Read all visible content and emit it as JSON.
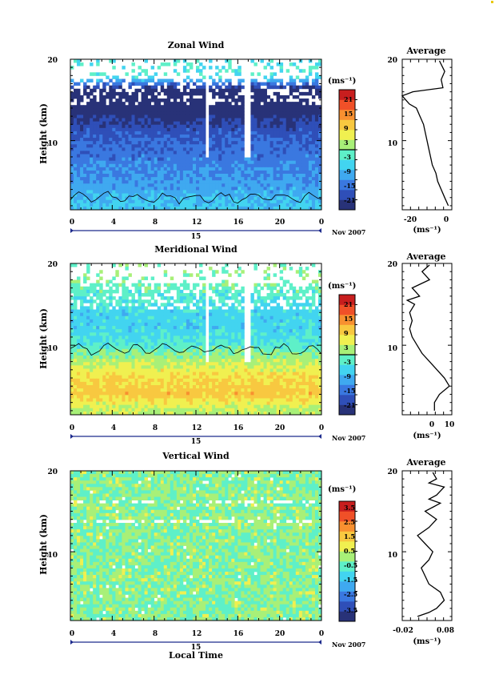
{
  "panels": [
    {
      "id": "zonal",
      "title": "Zonal Wind",
      "ylabel": "Height (km)",
      "y_ticks": [
        "20",
        "10"
      ],
      "x_ticks": [
        "0",
        "4",
        "8",
        "12",
        "16",
        "20",
        "0"
      ],
      "day_label": "15",
      "date_label": "Nov 2007",
      "unit_label": "(ms⁻¹)",
      "colorbar_ticks": [
        "21",
        "15",
        "9",
        "3",
        "-3",
        "-9",
        "-15",
        "-21"
      ],
      "colorbar_contour_value": "0",
      "average": {
        "title": "Average",
        "y_ticks": [
          "20",
          "10"
        ],
        "x_ticks": [
          "-20",
          "0"
        ],
        "xlabel": "(ms⁻¹)"
      }
    },
    {
      "id": "meridional",
      "title": "Meridional Wind",
      "ylabel": "Height (km)",
      "y_ticks": [
        "20",
        "10"
      ],
      "x_ticks": [
        "0",
        "4",
        "8",
        "12",
        "16",
        "20",
        "0"
      ],
      "day_label": "15",
      "date_label": "Nov 2007",
      "unit_label": "(ms⁻¹)",
      "colorbar_ticks": [
        "21",
        "15",
        "9",
        "3",
        "-3",
        "-9",
        "-15",
        "-21"
      ],
      "colorbar_contour_value": "0",
      "average": {
        "title": "Average",
        "y_ticks": [
          "20",
          "10"
        ],
        "x_ticks": [
          "0",
          "10"
        ],
        "xlabel": "(ms⁻¹)"
      }
    },
    {
      "id": "vertical",
      "title": "Vertical Wind",
      "ylabel": "Height (km)",
      "y_ticks": [
        "20",
        "10"
      ],
      "x_ticks": [
        "0",
        "4",
        "8",
        "12",
        "16",
        "20",
        "0"
      ],
      "day_label": "15",
      "date_label": "Nov 2007",
      "unit_label": "(ms⁻¹)",
      "colorbar_ticks": [
        "3.5",
        "2.5",
        "1.5",
        "0.5",
        "-0.5",
        "-1.5",
        "-2.5",
        "-3.5"
      ],
      "average": {
        "title": "Average",
        "y_ticks": [
          "20",
          "10"
        ],
        "x_ticks": [
          "-0.02",
          "0.08"
        ],
        "xlabel": "(ms⁻¹)"
      }
    }
  ],
  "xlabel": "Local Time",
  "colorscale": [
    "#283278",
    "#2f4fb8",
    "#3a78e0",
    "#3fa9f0",
    "#42d4f0",
    "#5ef0c8",
    "#a8f078",
    "#f0f050",
    "#f8c840",
    "#f89030",
    "#f05028",
    "#c81e1e"
  ],
  "chart_data": [
    {
      "type": "heatmap",
      "title": "Zonal Wind",
      "xlabel": "Local Time",
      "ylabel": "Height (km)",
      "xlim": [
        0,
        24
      ],
      "ylim": [
        1.5,
        20
      ],
      "colorbar": {
        "label": "(ms⁻¹)",
        "range": [
          -24,
          24
        ],
        "ticks": [
          21,
          15,
          9,
          3,
          -3,
          -9,
          -15,
          -21
        ],
        "contour": 0
      },
      "profile_heights_km": [
        2,
        4,
        6,
        8,
        10,
        12,
        14,
        16,
        18,
        20
      ],
      "profile_values": [
        -7,
        -10,
        -12,
        -14,
        -16,
        -19,
        -24,
        -26,
        -3,
        -5
      ],
      "notes": "Positive (westerly) values near surface below ~3 km; strong easterly jet ~15-16 km"
    },
    {
      "type": "line",
      "title": "Average",
      "series": [
        {
          "x": [
            1,
            -1,
            -3,
            -5,
            -6,
            -8,
            -9,
            -10,
            -11,
            -12,
            -13,
            -15,
            -17,
            -21,
            -23,
            -25,
            -19,
            -2,
            -3,
            -1,
            -4
          ],
          "y": [
            2,
            3,
            4,
            5,
            6,
            7,
            8,
            9,
            10,
            11,
            12,
            13,
            14,
            14.5,
            15,
            15.5,
            16,
            16.5,
            17.5,
            18.5,
            19.8
          ]
        }
      ],
      "xlim": [
        -25,
        3
      ],
      "ylim": [
        1.5,
        20
      ],
      "xlabel": "(ms⁻¹)"
    },
    {
      "type": "heatmap",
      "title": "Meridional Wind",
      "xlabel": "Local Time",
      "ylabel": "Height (km)",
      "xlim": [
        0,
        24
      ],
      "ylim": [
        1.5,
        20
      ],
      "colorbar": {
        "label": "(ms⁻¹)",
        "range": [
          -24,
          24
        ],
        "ticks": [
          21,
          15,
          9,
          3,
          -3,
          -9,
          -15,
          -21
        ],
        "contour": 0
      },
      "profile_heights_km": [
        2,
        4,
        6,
        8,
        10,
        12,
        14,
        16,
        18,
        20
      ],
      "profile_values": [
        3,
        10,
        8,
        3,
        -3,
        -6,
        -6,
        -3,
        0,
        -1
      ]
    },
    {
      "type": "line",
      "title": "Average",
      "series": [
        {
          "x": [
            4,
            4,
            6,
            10,
            8,
            5,
            2,
            -1,
            -3,
            -5,
            -6,
            -5,
            -6,
            -5,
            -4,
            -7,
            -2,
            -5,
            2,
            -1,
            2
          ],
          "y": [
            2,
            3,
            4,
            5,
            6,
            7,
            8,
            9,
            10,
            11,
            12,
            13,
            14,
            14.5,
            15,
            15.5,
            16,
            17,
            18,
            19,
            19.8
          ]
        }
      ],
      "xlim": [
        -9,
        11
      ],
      "ylim": [
        1.5,
        20
      ],
      "xlabel": "(ms⁻¹)"
    },
    {
      "type": "heatmap",
      "title": "Vertical Wind",
      "xlabel": "Local Time",
      "ylabel": "Height (km)",
      "xlim": [
        0,
        24
      ],
      "ylim": [
        1.5,
        20
      ],
      "colorbar": {
        "label": "(ms⁻¹)",
        "range": [
          -4,
          4
        ],
        "ticks": [
          3.5,
          2.5,
          1.5,
          0.5,
          -0.5,
          -1.5,
          -2.5,
          -3.5
        ]
      }
    },
    {
      "type": "line",
      "title": "Average",
      "series": [
        {
          "x": [
            0.0,
            0.03,
            0.05,
            0.07,
            0.06,
            0.03,
            0.02,
            0.01,
            0.03,
            0.04,
            0.02,
            0.0,
            0.03,
            0.05,
            0.02,
            0.04,
            0.06,
            0.03,
            0.05,
            0.07,
            0.03,
            0.05,
            0.04
          ],
          "y": [
            2,
            2.5,
            3,
            4,
            5,
            6,
            7,
            8,
            9,
            10,
            11,
            12,
            13,
            14,
            15,
            15.5,
            16,
            16.5,
            17,
            18,
            18.5,
            19,
            19.8
          ]
        }
      ],
      "xlim": [
        -0.04,
        0.09
      ],
      "ylim": [
        1.5,
        20
      ],
      "xlabel": "(ms⁻¹)"
    }
  ]
}
